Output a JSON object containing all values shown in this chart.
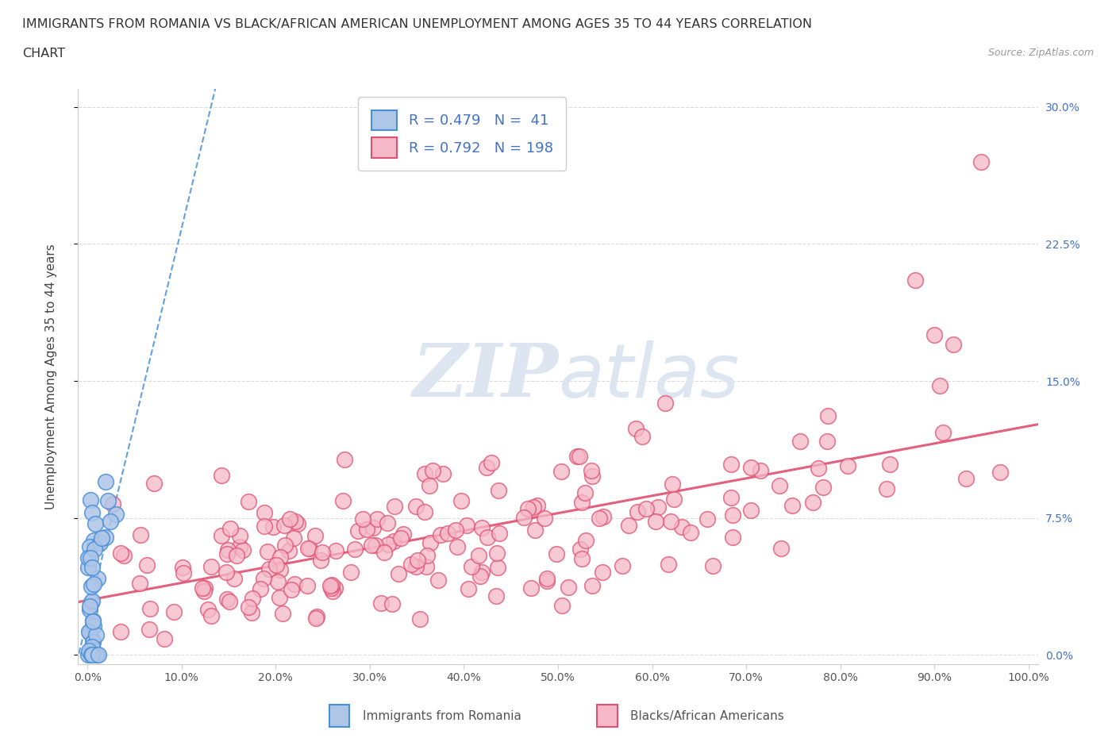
{
  "title_line1": "IMMIGRANTS FROM ROMANIA VS BLACK/AFRICAN AMERICAN UNEMPLOYMENT AMONG AGES 35 TO 44 YEARS CORRELATION",
  "title_line2": "CHART",
  "source_text": "Source: ZipAtlas.com",
  "ylabel": "Unemployment Among Ages 35 to 44 years",
  "xlim": [
    -1,
    101
  ],
  "ylim": [
    -0.5,
    31
  ],
  "xticks": [
    0,
    10,
    20,
    30,
    40,
    50,
    60,
    70,
    80,
    90,
    100
  ],
  "yticks": [
    0,
    7.5,
    15.0,
    22.5,
    30.0
  ],
  "romania_R": 0.479,
  "romania_N": 41,
  "black_R": 0.792,
  "black_N": 198,
  "romania_color": "#aec6e8",
  "romania_edge_color": "#4a90d9",
  "black_color": "#f5b8c8",
  "black_edge_color": "#e05070",
  "trend_romania_color": "#4a90d9",
  "trend_black_color": "#e05070",
  "watermark_color": "#dde6f0",
  "legend_text_color": "#4472c4",
  "background_color": "#ffffff",
  "grid_color": "#cccccc",
  "tick_color": "#555555"
}
